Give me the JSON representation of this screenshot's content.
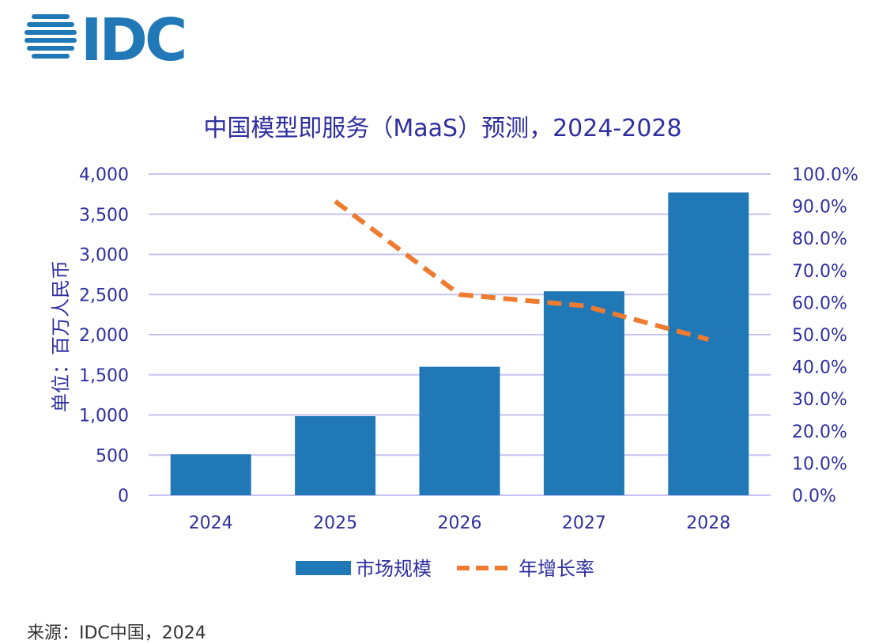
{
  "logo": {
    "text": "IDC"
  },
  "source": "来源：IDC中国，2024",
  "colors": {
    "bar": "#2178b7",
    "line": "#ee7b2f",
    "text": "#2f2fa0",
    "grid": "#c6c3f0"
  },
  "chart_data": {
    "type": "bar",
    "title": "中国模型即服务（MaaS）预测，2024-2028",
    "ylabel": "单位：百万人民币",
    "categories": [
      "2024",
      "2025",
      "2026",
      "2027",
      "2028"
    ],
    "ylim": [
      0,
      4000
    ],
    "yticks": [
      "0",
      "500",
      "1,000",
      "1,500",
      "2,000",
      "2,500",
      "3,000",
      "3,500",
      "4,000"
    ],
    "y2lim": [
      0,
      100
    ],
    "y2ticks": [
      "0.0%",
      "10.0%",
      "20.0%",
      "30.0%",
      "40.0%",
      "50.0%",
      "60.0%",
      "70.0%",
      "80.0%",
      "90.0%",
      "100.0%"
    ],
    "series": [
      {
        "name": "市场规模",
        "kind": "bar",
        "axis": "left",
        "values": [
          510,
          985,
          1600,
          2540,
          3770
        ]
      },
      {
        "name": "年增长率",
        "kind": "line",
        "axis": "right",
        "values": [
          null,
          91.5,
          62.5,
          59,
          48.5
        ]
      }
    ],
    "legend": [
      "市场规模",
      "年增长率"
    ],
    "legend_position": "bottom",
    "grid": true
  }
}
